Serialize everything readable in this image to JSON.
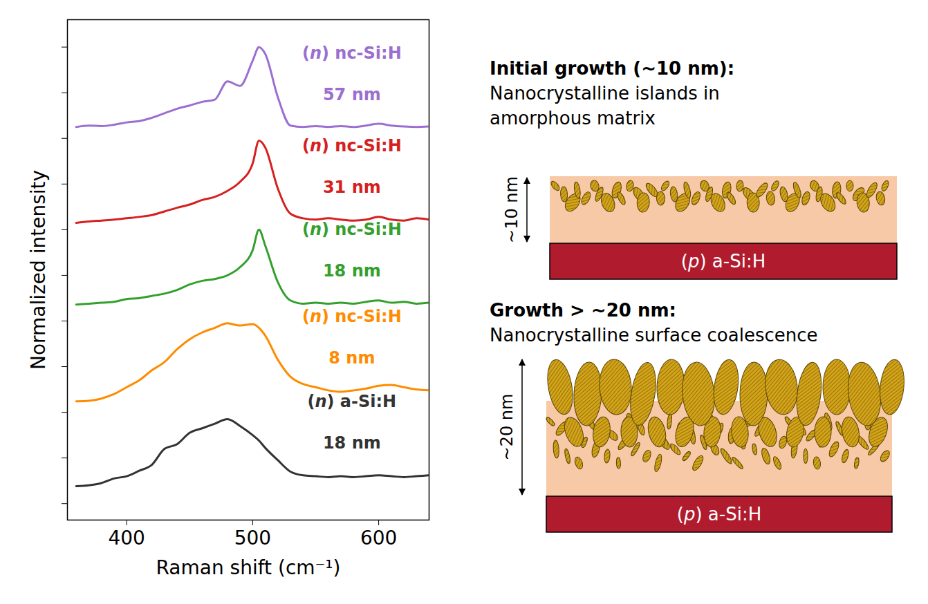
{
  "chart_data": {
    "type": "line",
    "x_label": "Raman shift (cm⁻¹)",
    "y_label": "Normalized intensity",
    "x": [
      360,
      370,
      380,
      390,
      400,
      410,
      420,
      430,
      440,
      450,
      460,
      470,
      480,
      490,
      500,
      505,
      510,
      520,
      530,
      540,
      550,
      560,
      570,
      580,
      590,
      600,
      610,
      620,
      630,
      640
    ],
    "series": [
      {
        "name": "(n) a-Si:H",
        "annotation": "18 nm",
        "color": "#333333",
        "values": [
          1.38,
          1.4,
          1.45,
          1.55,
          1.6,
          1.72,
          1.85,
          2.2,
          2.3,
          2.55,
          2.65,
          2.75,
          2.85,
          2.7,
          2.5,
          2.38,
          2.22,
          1.95,
          1.7,
          1.62,
          1.6,
          1.58,
          1.6,
          1.58,
          1.6,
          1.62,
          1.6,
          1.58,
          1.6,
          1.62
        ]
      },
      {
        "name": "(n) nc-Si:H",
        "annotation": "8 nm",
        "color": "#ff8c00",
        "values": [
          3.24,
          3.25,
          3.3,
          3.4,
          3.55,
          3.7,
          3.92,
          4.1,
          4.38,
          4.6,
          4.75,
          4.85,
          4.95,
          4.9,
          4.93,
          4.85,
          4.68,
          4.15,
          3.78,
          3.62,
          3.55,
          3.48,
          3.45,
          3.48,
          3.52,
          3.58,
          3.6,
          3.55,
          3.5,
          3.48
        ]
      },
      {
        "name": "(n) nc-Si:H",
        "annotation": "18 nm",
        "color": "#33a02c",
        "values": [
          5.36,
          5.38,
          5.4,
          5.42,
          5.48,
          5.5,
          5.55,
          5.6,
          5.68,
          5.8,
          5.88,
          5.92,
          6.0,
          6.18,
          6.55,
          7.0,
          6.65,
          5.85,
          5.45,
          5.38,
          5.4,
          5.38,
          5.4,
          5.38,
          5.42,
          5.45,
          5.4,
          5.42,
          5.38,
          5.4
        ]
      },
      {
        "name": "(n) nc-Si:H",
        "annotation": "31 nm",
        "color": "#d62020",
        "values": [
          7.15,
          7.18,
          7.2,
          7.22,
          7.25,
          7.28,
          7.32,
          7.4,
          7.48,
          7.55,
          7.65,
          7.72,
          7.85,
          8.05,
          8.45,
          8.95,
          8.8,
          7.9,
          7.35,
          7.25,
          7.22,
          7.25,
          7.22,
          7.2,
          7.22,
          7.28,
          7.22,
          7.2,
          7.25,
          7.22
        ]
      },
      {
        "name": "(n) nc-Si:H",
        "annotation": "57 nm",
        "color": "#9b6fd0",
        "values": [
          9.25,
          9.28,
          9.27,
          9.3,
          9.35,
          9.38,
          9.45,
          9.55,
          9.65,
          9.72,
          9.8,
          9.85,
          10.25,
          10.15,
          10.7,
          11.0,
          10.85,
          9.9,
          9.28,
          9.25,
          9.27,
          9.25,
          9.27,
          9.25,
          9.28,
          9.32,
          9.28,
          9.26,
          9.25,
          9.26
        ]
      }
    ],
    "xlim": [
      353,
      640
    ],
    "xticks": [
      400,
      500,
      600
    ],
    "ylim": [
      0.64,
      11.6
    ],
    "yticks": [
      1,
      2,
      3,
      4,
      5,
      6,
      7,
      8,
      9,
      10,
      11
    ],
    "tick_labels": "x"
  },
  "diagram": {
    "panels": [
      {
        "title": "Initial growth (~10 nm):",
        "text": "Nanocrystalline islands in amorphous matrix",
        "thickness": "~10 nm",
        "layer": "(p) a-Si:H"
      },
      {
        "title": "Growth > ~20 nm:",
        "text": "Nanocrystalline surface coalescence",
        "thickness": "~20 nm",
        "layer": "(p) a-Si:H"
      }
    ]
  }
}
